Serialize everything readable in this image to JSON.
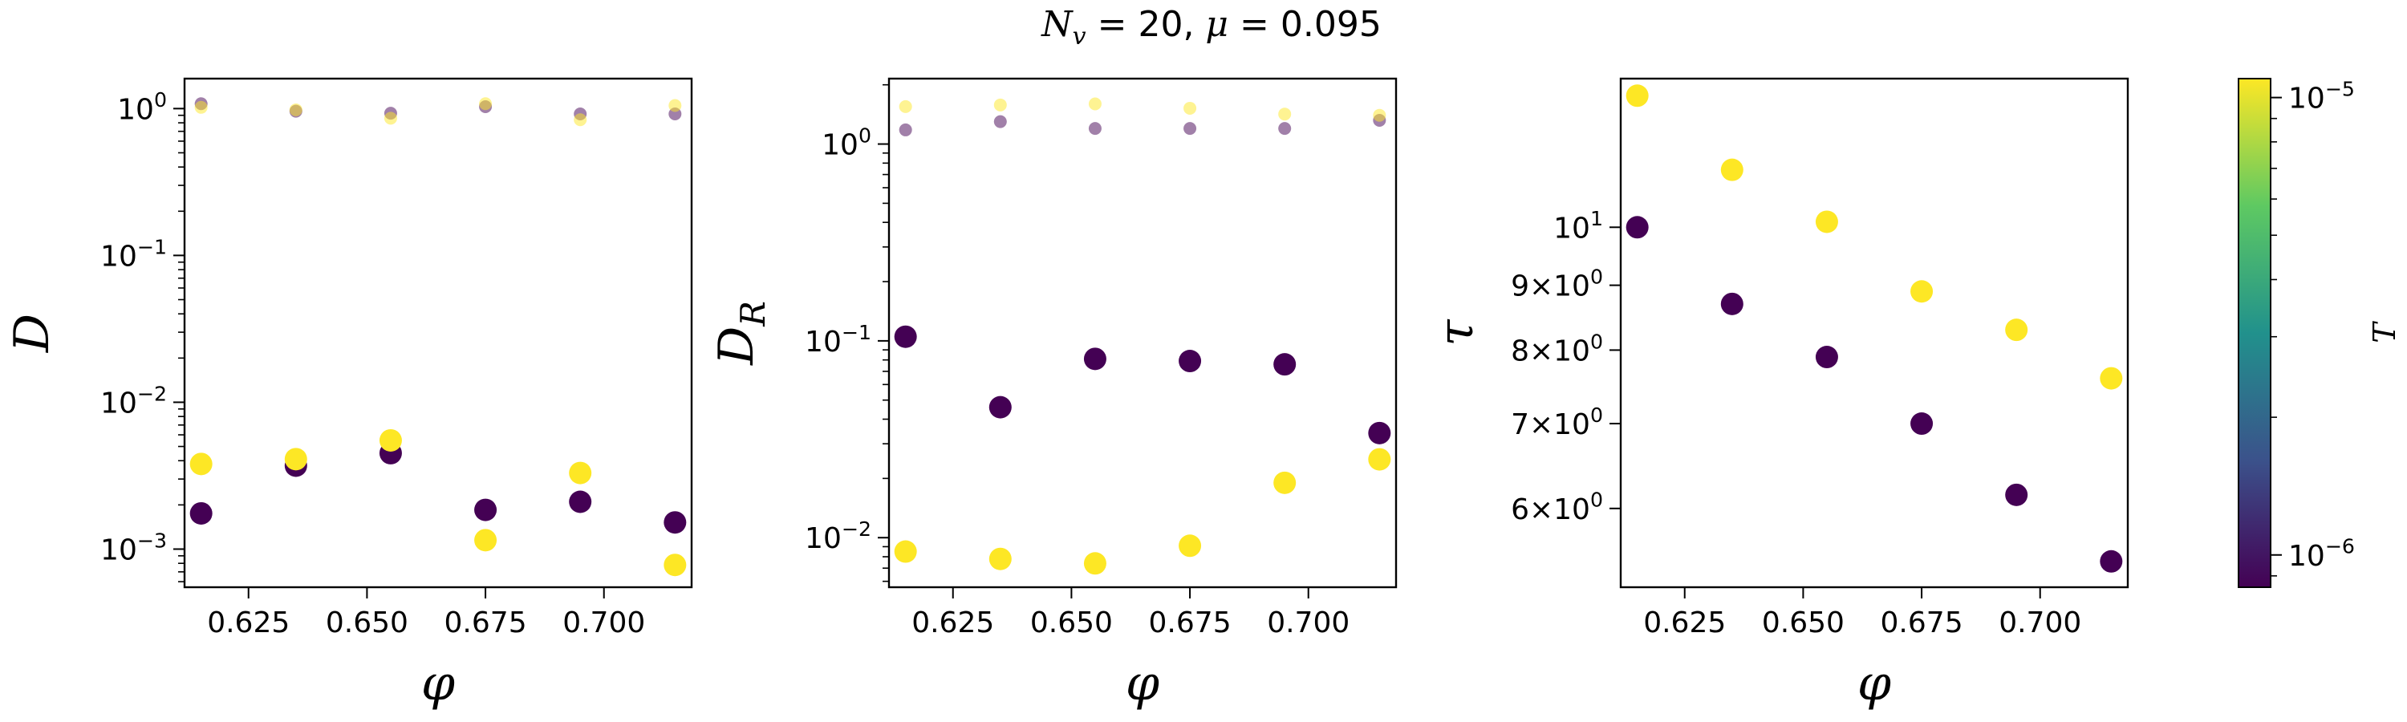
{
  "suptitle": "N_v = 20, μ = 0.095",
  "colorbar": {
    "label": "T",
    "scale": "log",
    "range": [
      8.5e-07,
      1.1e-05
    ],
    "ticks": [
      {
        "value": 1e-05,
        "label": "10^-5"
      },
      {
        "value": 1e-06,
        "label": "10^-6"
      }
    ],
    "colormap": "viridis",
    "colors": [
      "#440154",
      "#3b528b",
      "#21918c",
      "#5ec962",
      "#fde725"
    ]
  },
  "chart_data": [
    {
      "type": "scatter",
      "ylabel": "D",
      "xlabel": "φ",
      "yscale": "log",
      "xlim": [
        0.6115,
        0.7185
      ],
      "ylim": [
        0.00055,
        1.6
      ],
      "xticks": [
        {
          "value": 0.625,
          "label": "0.625"
        },
        {
          "value": 0.65,
          "label": "0.650"
        },
        {
          "value": 0.675,
          "label": "0.675"
        },
        {
          "value": 0.7,
          "label": "0.700"
        }
      ],
      "yticks": [
        {
          "value": 1,
          "label": "10^0"
        },
        {
          "value": 0.1,
          "label": "10^-1"
        },
        {
          "value": 0.01,
          "label": "10^-2"
        },
        {
          "value": 0.001,
          "label": "10^-3"
        }
      ],
      "series": [
        {
          "color": "#440154",
          "alpha": 0.5,
          "size": "small",
          "x": [
            0.615,
            0.635,
            0.655,
            0.675,
            0.695,
            0.715
          ],
          "y": [
            1.08,
            0.96,
            0.93,
            1.03,
            0.92,
            0.92
          ]
        },
        {
          "color": "#fde725",
          "alpha": 0.5,
          "size": "small",
          "x": [
            0.615,
            0.635,
            0.655,
            0.675,
            0.695,
            0.715
          ],
          "y": [
            1.02,
            0.98,
            0.86,
            1.08,
            0.84,
            1.05
          ]
        },
        {
          "color": "#440154",
          "alpha": 1,
          "size": "large",
          "x": [
            0.615,
            0.635,
            0.655,
            0.675,
            0.695,
            0.715
          ],
          "y": [
            0.00175,
            0.0037,
            0.0045,
            0.00185,
            0.0021,
            0.00152
          ]
        },
        {
          "color": "#fde725",
          "alpha": 1,
          "size": "large",
          "x": [
            0.615,
            0.635,
            0.655,
            0.675,
            0.695,
            0.715
          ],
          "y": [
            0.0038,
            0.0041,
            0.0055,
            0.00115,
            0.0033,
            0.00078
          ]
        }
      ]
    },
    {
      "type": "scatter",
      "ylabel": "D_R",
      "xlabel": "φ",
      "yscale": "log",
      "xlim": [
        0.6115,
        0.7185
      ],
      "ylim": [
        0.0056,
        2.15
      ],
      "xticks": [
        {
          "value": 0.625,
          "label": "0.625"
        },
        {
          "value": 0.65,
          "label": "0.650"
        },
        {
          "value": 0.675,
          "label": "0.675"
        },
        {
          "value": 0.7,
          "label": "0.700"
        }
      ],
      "yticks": [
        {
          "value": 1,
          "label": "10^0"
        },
        {
          "value": 0.1,
          "label": "10^-1"
        },
        {
          "value": 0.01,
          "label": "10^-2"
        }
      ],
      "series": [
        {
          "color": "#440154",
          "alpha": 0.5,
          "size": "small",
          "x": [
            0.615,
            0.635,
            0.655,
            0.675,
            0.695,
            0.715
          ],
          "y": [
            1.18,
            1.3,
            1.2,
            1.2,
            1.2,
            1.32
          ]
        },
        {
          "color": "#fde725",
          "alpha": 0.5,
          "size": "small",
          "x": [
            0.615,
            0.635,
            0.655,
            0.675,
            0.695,
            0.715
          ],
          "y": [
            1.55,
            1.58,
            1.6,
            1.52,
            1.42,
            1.4
          ]
        },
        {
          "color": "#440154",
          "alpha": 1,
          "size": "large",
          "x": [
            0.615,
            0.635,
            0.655,
            0.675,
            0.695,
            0.715
          ],
          "y": [
            0.105,
            0.046,
            0.081,
            0.079,
            0.076,
            0.034
          ]
        },
        {
          "color": "#fde725",
          "alpha": 1,
          "size": "large",
          "x": [
            0.615,
            0.635,
            0.655,
            0.675,
            0.695,
            0.715
          ],
          "y": [
            0.0085,
            0.0078,
            0.0074,
            0.0091,
            0.019,
            0.025
          ]
        }
      ]
    },
    {
      "type": "scatter",
      "ylabel": "τ",
      "xlabel": "φ",
      "yscale": "log",
      "xlim": [
        0.6115,
        0.7185
      ],
      "ylim": [
        5.2,
        13.1
      ],
      "xticks": [
        {
          "value": 0.625,
          "label": "0.625"
        },
        {
          "value": 0.65,
          "label": "0.650"
        },
        {
          "value": 0.675,
          "label": "0.675"
        },
        {
          "value": 0.7,
          "label": "0.700"
        }
      ],
      "yticks": [
        {
          "value": 10,
          "label": "10^1"
        },
        {
          "value": 9,
          "label": "9×10^0"
        },
        {
          "value": 8,
          "label": "8×10^0"
        },
        {
          "value": 7,
          "label": "7×10^0"
        },
        {
          "value": 6,
          "label": "6×10^0"
        }
      ],
      "series": [
        {
          "color": "#440154",
          "alpha": 1,
          "size": "large",
          "x": [
            0.615,
            0.635,
            0.655,
            0.675,
            0.695,
            0.715
          ],
          "y": [
            10.0,
            8.7,
            7.9,
            7.0,
            6.15,
            5.45
          ]
        },
        {
          "color": "#fde725",
          "alpha": 1,
          "size": "large",
          "x": [
            0.615,
            0.635,
            0.655,
            0.675,
            0.695,
            0.715
          ],
          "y": [
            12.7,
            11.1,
            10.1,
            8.9,
            8.3,
            7.6
          ]
        }
      ]
    }
  ]
}
